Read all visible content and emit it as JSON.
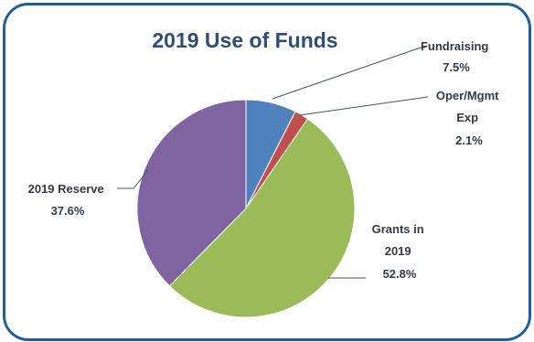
{
  "chart_data": {
    "type": "pie",
    "title": "2019 Use of Funds",
    "slices": [
      {
        "label_lines": [
          "Fundraising",
          "7.5%"
        ],
        "name": "Fundraising",
        "value": 7.5,
        "color": "#4f81bd"
      },
      {
        "label_lines": [
          "Oper/Mgmt",
          "Exp",
          "2.1%"
        ],
        "name": "Oper/Mgmt Exp",
        "value": 2.1,
        "color": "#c0504d"
      },
      {
        "label_lines": [
          "Grants in",
          "2019",
          "52.8%"
        ],
        "name": "Grants in 2019",
        "value": 52.8,
        "color": "#9bbb59"
      },
      {
        "label_lines": [
          "2019 Reserve",
          "37.6%"
        ],
        "name": "2019 Reserve",
        "value": 37.6,
        "color": "#8064a2"
      }
    ]
  },
  "colors": {
    "frame_border": "#1f5f9f",
    "title": "#2e4e77",
    "label_text": "#323c48"
  }
}
